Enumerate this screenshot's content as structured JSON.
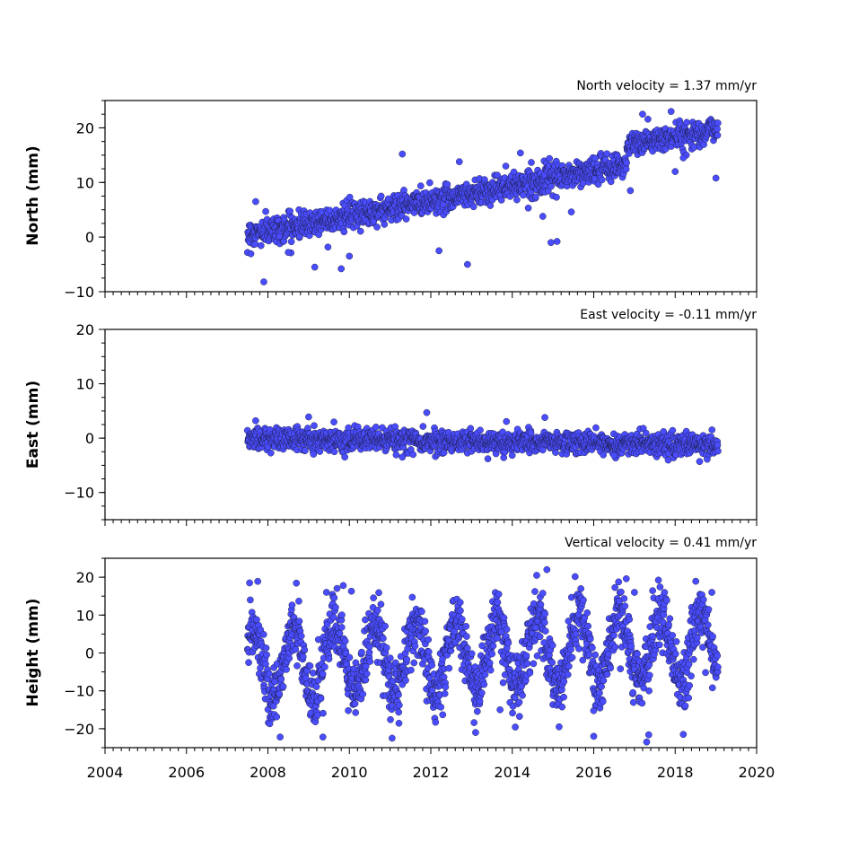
{
  "chart_data": [
    {
      "type": "scatter",
      "title": "North velocity = 1.37 mm/yr",
      "ylabel": "North (mm)",
      "xlabel": "",
      "xlim": [
        2004,
        2020
      ],
      "ylim": [
        -10,
        25
      ],
      "yticks": [
        -10,
        0,
        10,
        20
      ],
      "xticks": [],
      "series": [
        {
          "color": "#4a4dff",
          "model": {
            "start": 2007.5,
            "end": 2019.05,
            "intercept_at_2007_5": 0.5,
            "rate_mm_per_yr": 1.37,
            "offset_at": 2016.8,
            "offset_mm": 3.5,
            "scatter_mm": 1.2,
            "n": 1400
          },
          "outliers": [
            [
              2007.9,
              -8.2
            ],
            [
              2007.7,
              6.5
            ],
            [
              2008.5,
              -2.8
            ],
            [
              2009.15,
              -5.5
            ],
            [
              2009.8,
              -5.8
            ],
            [
              2010.0,
              -3.5
            ],
            [
              2011.3,
              15.2
            ],
            [
              2012.2,
              -2.5
            ],
            [
              2012.9,
              -5
            ],
            [
              2012.7,
              13.8
            ],
            [
              2014.2,
              15.4
            ],
            [
              2014.75,
              3.8
            ],
            [
              2014.95,
              -1.0
            ],
            [
              2015.1,
              -0.8
            ],
            [
              2016.9,
              8.5
            ],
            [
              2017.2,
              22.5
            ],
            [
              2017.9,
              23
            ],
            [
              2018.0,
              12
            ],
            [
              2019.0,
              10.8
            ],
            [
              2018.2,
              14.5
            ],
            [
              2015.45,
              4.6
            ]
          ]
        }
      ]
    },
    {
      "type": "scatter",
      "title": "East velocity = -0.11 mm/yr",
      "ylabel": "East (mm)",
      "xlabel": "",
      "xlim": [
        2004,
        2020
      ],
      "ylim": [
        -15,
        20
      ],
      "yticks": [
        -10,
        0,
        10,
        20
      ],
      "xticks": [],
      "series": [
        {
          "color": "#4a4dff",
          "model": {
            "start": 2007.5,
            "end": 2019.05,
            "intercept_at_2007_5": 0.0,
            "rate_mm_per_yr": -0.11,
            "scatter_mm": 1.0,
            "n": 1400
          },
          "outliers": [
            [
              2011.9,
              4.7
            ],
            [
              2014.8,
              3.8
            ],
            [
              2009.0,
              3.9
            ],
            [
              2007.7,
              3.2
            ],
            [
              2016.5,
              -3.2
            ],
            [
              2018.6,
              -4.3
            ],
            [
              2011.3,
              -3.5
            ],
            [
              2013.4,
              -3.8
            ]
          ]
        }
      ]
    },
    {
      "type": "scatter",
      "title": "Vertical velocity = 0.41 mm/yr",
      "ylabel": "Height (mm)",
      "xlabel": "",
      "xlim": [
        2004,
        2020
      ],
      "ylim": [
        -25,
        25
      ],
      "yticks": [
        -20,
        -10,
        0,
        10,
        20
      ],
      "xticks": [
        "2004",
        "2006",
        "2008",
        "2010",
        "2012",
        "2014",
        "2016",
        "2018",
        "2020"
      ],
      "series": [
        {
          "color": "#4a4dff",
          "model": {
            "start": 2007.5,
            "end": 2019.05,
            "intercept_at_2007_5": -3.0,
            "rate_mm_per_yr": 0.41,
            "seasonal_amplitude_mm": 9,
            "seasonal_peak_fraction": 0.62,
            "scatter_mm": 4.0,
            "n": 1700
          },
          "outliers": [
            [
              2007.75,
              18.9
            ],
            [
              2007.55,
              18.5
            ],
            [
              2009.85,
              17.8
            ],
            [
              2010.05,
              16.3
            ],
            [
              2014.85,
              22.0
            ],
            [
              2014.6,
              20.5
            ],
            [
              2016.8,
              19.6
            ],
            [
              2017.0,
              16.0
            ],
            [
              2016.0,
              -22
            ],
            [
              2017.3,
              -23.5
            ],
            [
              2017.35,
              -21.6
            ],
            [
              2018.2,
              -21.5
            ],
            [
              2008.3,
              -22.2
            ],
            [
              2009.35,
              -22.2
            ],
            [
              2011.05,
              -22.5
            ],
            [
              2013.7,
              -15
            ],
            [
              2013.1,
              -21
            ],
            [
              2015.15,
              -19.5
            ],
            [
              2018.9,
              16
            ]
          ]
        }
      ]
    }
  ]
}
